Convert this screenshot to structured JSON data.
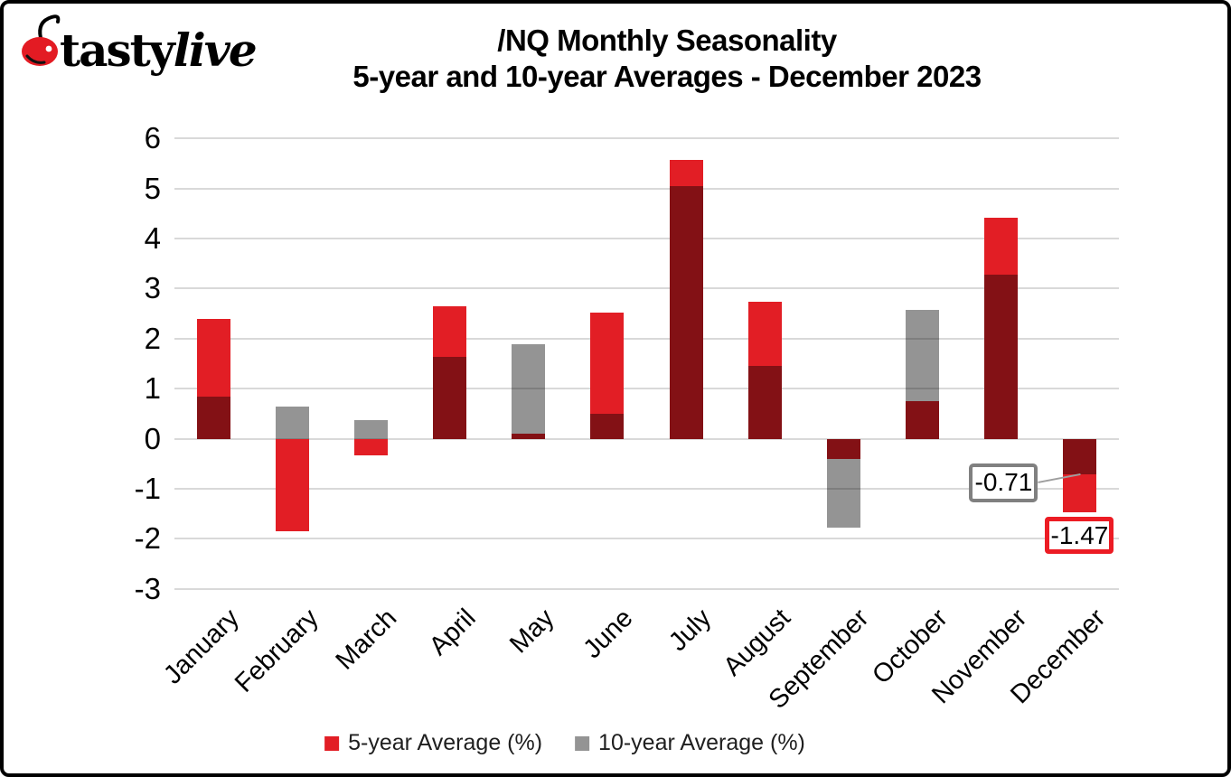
{
  "logo": {
    "text_regular": "tasty",
    "text_italic": "live"
  },
  "title": {
    "line1": "/NQ Monthly Seasonality",
    "line2": "5-year and 10-year Averages - December 2023"
  },
  "chart_data": {
    "type": "bar",
    "categories": [
      "January",
      "February",
      "March",
      "April",
      "May",
      "June",
      "July",
      "August",
      "September",
      "October",
      "November",
      "December"
    ],
    "series": [
      {
        "name": "5-year Average (%)",
        "color": "#e21e25",
        "values": [
          2.4,
          -1.85,
          -0.33,
          2.64,
          0.1,
          2.52,
          5.58,
          2.74,
          -0.4,
          0.75,
          4.41,
          -1.47
        ]
      },
      {
        "name": "10-year Average (%)",
        "color": "#949494",
        "values": [
          0.85,
          0.64,
          0.38,
          1.64,
          1.88,
          0.5,
          5.05,
          1.45,
          -1.78,
          2.58,
          3.28,
          -0.71
        ]
      }
    ],
    "overlap_color": "#7f161b",
    "ylim": [
      -3,
      6
    ],
    "yticks": [
      6,
      5,
      4,
      3,
      2,
      1,
      0,
      -1,
      -2,
      -3
    ],
    "grid": true,
    "gridline_color": "#d9d9d9",
    "legend_position": "bottom",
    "annotations": [
      {
        "text": "-0.71",
        "month": "December",
        "series": "10-year Average (%)",
        "value": -0.71,
        "border_color": "#808080"
      },
      {
        "text": "-1.47",
        "month": "December",
        "series": "5-year Average (%)",
        "value": -1.47,
        "border_color": "#ec1c24"
      }
    ]
  },
  "legend": {
    "items": [
      {
        "label": "5-year Average (%)",
        "color": "#e21e25"
      },
      {
        "label": "10-year Average (%)",
        "color": "#949494"
      }
    ]
  }
}
